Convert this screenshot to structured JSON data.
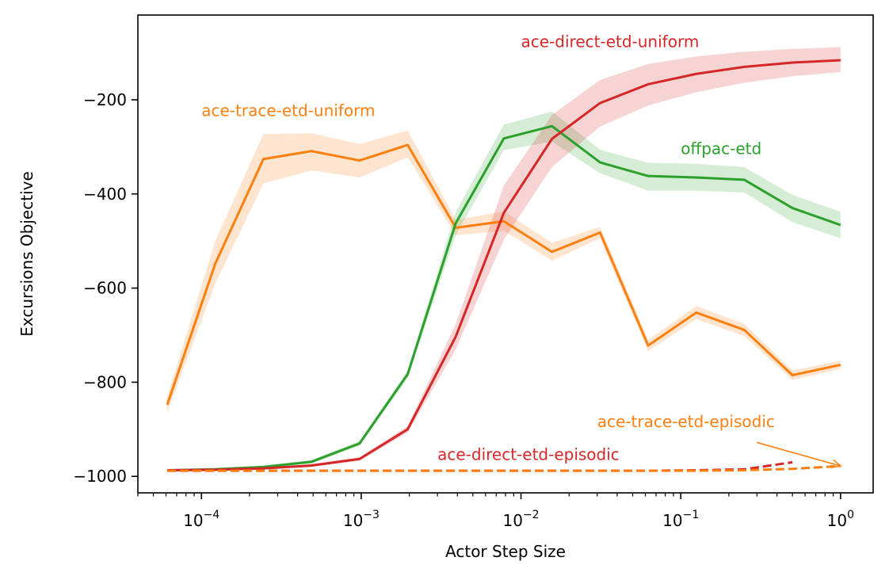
{
  "chart_data": {
    "type": "line",
    "xlabel": "Actor Step Size",
    "ylabel": "Excursions Objective",
    "xscale": "log",
    "xlim": [
      4e-05,
      1.6
    ],
    "ylim": [
      -1035,
      -20
    ],
    "grid": false,
    "legend": "none",
    "x_ticks": [
      {
        "value": 0.0001,
        "base": "10",
        "exp": "−4"
      },
      {
        "value": 0.001,
        "base": "10",
        "exp": "−3"
      },
      {
        "value": 0.01,
        "base": "10",
        "exp": "−2"
      },
      {
        "value": 0.1,
        "base": "10",
        "exp": "−1"
      },
      {
        "value": 1,
        "base": "10",
        "exp": "0"
      }
    ],
    "y_ticks": [
      {
        "value": -200,
        "label": "−200"
      },
      {
        "value": -400,
        "label": "−400"
      },
      {
        "value": -600,
        "label": "−600"
      },
      {
        "value": -800,
        "label": "−800"
      },
      {
        "value": -1000,
        "label": "−1000"
      }
    ],
    "series": [
      {
        "name": "ace-trace-etd-uniform",
        "color": "#ff7f0e",
        "dash": "solid",
        "x": [
          6.104e-05,
          0.0001221,
          0.0002441,
          0.0004883,
          0.0009766,
          0.001953,
          0.003906,
          0.007813,
          0.01563,
          0.03125,
          0.0625,
          0.125,
          0.25,
          0.5,
          1
        ],
        "y": [
          -848,
          -548,
          -326,
          -309,
          -329,
          -296,
          -472,
          -458,
          -523,
          -482,
          -722,
          -652,
          -689,
          -785,
          -763
        ],
        "lower": [
          -865,
          -590,
          -378,
          -350,
          -365,
          -322,
          -488,
          -478,
          -542,
          -494,
          -734,
          -666,
          -702,
          -795,
          -772
        ],
        "upper": [
          -831,
          -500,
          -273,
          -271,
          -294,
          -265,
          -455,
          -437,
          -504,
          -470,
          -710,
          -638,
          -676,
          -775,
          -754
        ]
      },
      {
        "name": "offpac-etd",
        "color": "#2ca02c",
        "dash": "solid",
        "x": [
          6.104e-05,
          0.0001221,
          0.0002441,
          0.0004883,
          0.0009766,
          0.001953,
          0.003906,
          0.007813,
          0.01563,
          0.03125,
          0.0625,
          0.125,
          0.25,
          0.5,
          1
        ],
        "y": [
          -987,
          -985,
          -980,
          -969,
          -930,
          -783,
          -462,
          -282,
          -256,
          -333,
          -362,
          -365,
          -370,
          -430,
          -466
        ],
        "lower": [
          -989,
          -988,
          -983,
          -973,
          -935,
          -792,
          -487,
          -307,
          -289,
          -356,
          -393,
          -393,
          -397,
          -460,
          -494
        ],
        "upper": [
          -985,
          -982,
          -977,
          -965,
          -925,
          -775,
          -438,
          -253,
          -225,
          -306,
          -334,
          -336,
          -343,
          -402,
          -438
        ]
      },
      {
        "name": "ace-direct-etd-uniform",
        "color": "#d62728",
        "dash": "solid",
        "x": [
          6.104e-05,
          0.0001221,
          0.0002441,
          0.0004883,
          0.0009766,
          0.001953,
          0.003906,
          0.007813,
          0.01563,
          0.03125,
          0.0625,
          0.125,
          0.25,
          0.5,
          1
        ],
        "y": [
          -987,
          -986,
          -983,
          -977,
          -963,
          -900,
          -703,
          -440,
          -283,
          -207,
          -167,
          -145,
          -130,
          -121,
          -116
        ],
        "lower": [
          -989,
          -988,
          -985,
          -980,
          -967,
          -907,
          -730,
          -497,
          -343,
          -257,
          -212,
          -184,
          -164,
          -150,
          -141
        ],
        "upper": [
          -985,
          -984,
          -981,
          -974,
          -959,
          -893,
          -676,
          -382,
          -232,
          -158,
          -124,
          -108,
          -98,
          -92,
          -88
        ]
      },
      {
        "name": "ace-direct-etd-episodic",
        "color": "#d62728",
        "dash": "dashed",
        "x": [
          6.104e-05,
          0.0001221,
          0.0002441,
          0.0004883,
          0.0009766,
          0.001953,
          0.003906,
          0.007813,
          0.01563,
          0.03125,
          0.0625,
          0.125,
          0.25,
          0.5
        ],
        "y": [
          -988,
          -988,
          -988,
          -988,
          -988,
          -988,
          -988,
          -988,
          -988,
          -988,
          -988,
          -987,
          -985,
          -970
        ]
      },
      {
        "name": "ace-trace-etd-episodic",
        "color": "#ff7f0e",
        "dash": "dashed",
        "x": [
          6.104e-05,
          0.0001221,
          0.0002441,
          0.0004883,
          0.0009766,
          0.001953,
          0.003906,
          0.007813,
          0.01563,
          0.03125,
          0.0625,
          0.125,
          0.25,
          0.5,
          1
        ],
        "y": [
          -988,
          -988,
          -988,
          -988,
          -988,
          -988,
          -988,
          -988,
          -988,
          -988,
          -988,
          -988,
          -987,
          -984,
          -978
        ]
      }
    ],
    "annotations": [
      {
        "text": "ace-direct-etd-uniform",
        "color": "#d62728",
        "x": 0.01,
        "y": -88,
        "anchor": "start"
      },
      {
        "text": "ace-trace-etd-uniform",
        "color": "#ff7f0e",
        "x": 0.0001,
        "y": -235,
        "anchor": "start"
      },
      {
        "text": "offpac-etd",
        "color": "#2ca02c",
        "x": 0.1,
        "y": -315,
        "anchor": "start"
      },
      {
        "text": "ace-trace-etd-episodic",
        "color": "#ff7f0e",
        "x": 0.03,
        "y": -895,
        "anchor": "start",
        "arrow_from": [
          0.3,
          -928
        ],
        "arrow_to": [
          1.0,
          -978
        ]
      },
      {
        "text": "ace-direct-etd-episodic",
        "color": "#d62728",
        "x": 0.003,
        "y": -965,
        "anchor": "start"
      }
    ]
  }
}
